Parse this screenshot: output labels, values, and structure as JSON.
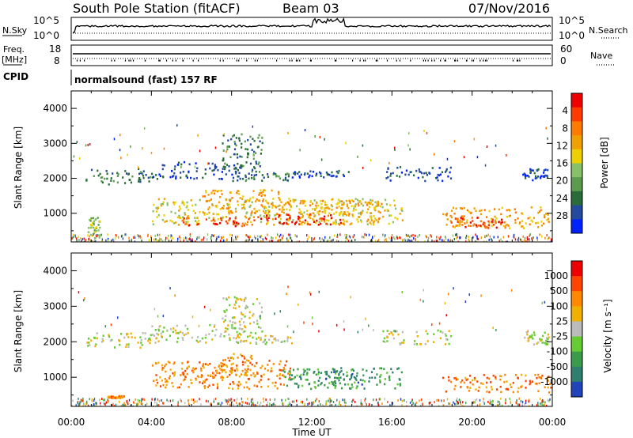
{
  "header": {
    "station": "South Pole Station (fitACF)",
    "beam": "Beam 03",
    "date": "07/Nov/2016"
  },
  "top_panel": {
    "left_label": "N.Sky",
    "left_ticks": [
      "10^5",
      "10^0"
    ],
    "right_label": "N.Search",
    "right_ticks": [
      "10^5",
      "10^0"
    ]
  },
  "freq_panel": {
    "left_label_1": "Freq.",
    "left_label_2": "[MHz]",
    "left_ticks": [
      "18",
      "8"
    ],
    "right_label": "Nave",
    "right_ticks": [
      "60",
      "0"
    ]
  },
  "cpid": {
    "label": "CPID",
    "text": "normalsound (fast) 157 RF"
  },
  "chart_data": [
    {
      "type": "heatmap",
      "title": "",
      "xlabel": "",
      "ylabel": "Slant Range [km]",
      "xlim": [
        0,
        24
      ],
      "ylim": [
        180,
        4500
      ],
      "x_tick_labels": [
        "00:00",
        "04:00",
        "08:00",
        "12:00",
        "16:00",
        "20:00",
        "00:00"
      ],
      "y_ticks": [
        1000,
        2000,
        3000,
        4000
      ],
      "y_tick_labels": [
        "1000",
        "2000",
        "3000",
        "4000"
      ],
      "colorbar": {
        "label": "Power [dB]",
        "range": [
          0,
          30
        ],
        "tick_labels": [
          "4",
          "8",
          "12",
          "16",
          "20",
          "24",
          "28"
        ],
        "colors": [
          "#0022ff",
          "#244a9e",
          "#2a6b3a",
          "#5a9b4e",
          "#88c06a",
          "#eed000",
          "#f0a000",
          "#ff7a00",
          "#ff3a00",
          "#ee0000"
        ]
      },
      "regions": [
        {
          "t0": 0.7,
          "t1": 4.0,
          "r0": 1850,
          "r1": 2300,
          "level": 2
        },
        {
          "t0": 4.0,
          "t1": 8.5,
          "r0": 2000,
          "r1": 2500,
          "level": 1
        },
        {
          "t0": 7.5,
          "t1": 9.5,
          "r0": 2200,
          "r1": 3300,
          "level": 2
        },
        {
          "t0": 8.0,
          "t1": 11.0,
          "r0": 1950,
          "r1": 2200,
          "level": 2
        },
        {
          "t0": 11.0,
          "t1": 14.0,
          "r0": 2050,
          "r1": 2250,
          "level": 1
        },
        {
          "t0": 15.5,
          "t1": 19.0,
          "r0": 1950,
          "r1": 2350,
          "level": 1
        },
        {
          "t0": 22.5,
          "t1": 23.8,
          "r0": 1950,
          "r1": 2300,
          "level": 1
        },
        {
          "t0": 4.0,
          "t1": 16.5,
          "r0": 700,
          "r1": 1450,
          "level": 5
        },
        {
          "t0": 6.5,
          "t1": 10.5,
          "r0": 1000,
          "r1": 1700,
          "level": 6
        },
        {
          "t0": 10.0,
          "t1": 15.5,
          "r0": 700,
          "r1": 1400,
          "level": 6
        },
        {
          "t0": 9.0,
          "t1": 13.5,
          "r0": 700,
          "r1": 1000,
          "level": 9
        },
        {
          "t0": 5.5,
          "t1": 9.0,
          "r0": 650,
          "r1": 900,
          "level": 8
        },
        {
          "t0": 18.5,
          "t1": 24.0,
          "r0": 600,
          "r1": 1200,
          "level": 6
        },
        {
          "t0": 18.8,
          "t1": 21.5,
          "r0": 600,
          "r1": 900,
          "level": 8
        },
        {
          "t0": 0.8,
          "t1": 1.4,
          "r0": 300,
          "r1": 900,
          "level": 4
        }
      ]
    },
    {
      "type": "heatmap",
      "title": "",
      "xlabel": "Time UT",
      "ylabel": "Slant Range [km]",
      "xlim": [
        0,
        24
      ],
      "ylim": [
        180,
        4500
      ],
      "x_tick_labels": [
        "00:00",
        "04:00",
        "08:00",
        "12:00",
        "16:00",
        "20:00",
        "00:00"
      ],
      "y_ticks": [
        1000,
        2000,
        3000,
        4000
      ],
      "y_tick_labels": [
        "1000",
        "2000",
        "3000",
        "4000"
      ],
      "colorbar": {
        "label": "Velocity [m s⁻¹]",
        "tick_labels": [
          "1000",
          "500",
          "100",
          "25",
          "-25",
          "-100",
          "-500",
          "-1000"
        ],
        "colors": [
          "#2244bb",
          "#2e7f6e",
          "#3a9b4a",
          "#66cc33",
          "#bbbbbb",
          "#f0b000",
          "#ff8800",
          "#ff4400",
          "#ee0000"
        ]
      },
      "regions": [
        {
          "t0": 0.7,
          "t1": 4.0,
          "r0": 1850,
          "r1": 2300,
          "level": 4
        },
        {
          "t0": 4.0,
          "t1": 8.5,
          "r0": 2000,
          "r1": 2500,
          "level": 4
        },
        {
          "t0": 7.5,
          "t1": 9.5,
          "r0": 2200,
          "r1": 3300,
          "level": 4
        },
        {
          "t0": 8.0,
          "t1": 11.0,
          "r0": 1950,
          "r1": 2200,
          "level": 4
        },
        {
          "t0": 15.5,
          "t1": 19.0,
          "r0": 1950,
          "r1": 2350,
          "level": 4
        },
        {
          "t0": 22.5,
          "t1": 23.8,
          "r0": 1950,
          "r1": 2300,
          "level": 4
        },
        {
          "t0": 4.0,
          "t1": 11.0,
          "r0": 700,
          "r1": 1500,
          "level": 6
        },
        {
          "t0": 7.0,
          "t1": 9.5,
          "r0": 1000,
          "r1": 1700,
          "level": 6
        },
        {
          "t0": 10.5,
          "t1": 16.5,
          "r0": 700,
          "r1": 1300,
          "level": 2
        },
        {
          "t0": 12.0,
          "t1": 15.0,
          "r0": 800,
          "r1": 1200,
          "level": 1
        },
        {
          "t0": 18.5,
          "t1": 24.0,
          "r0": 600,
          "r1": 1100,
          "level": 6
        },
        {
          "t0": 1.8,
          "t1": 2.6,
          "r0": 440,
          "r1": 500,
          "level": 6
        }
      ]
    }
  ]
}
